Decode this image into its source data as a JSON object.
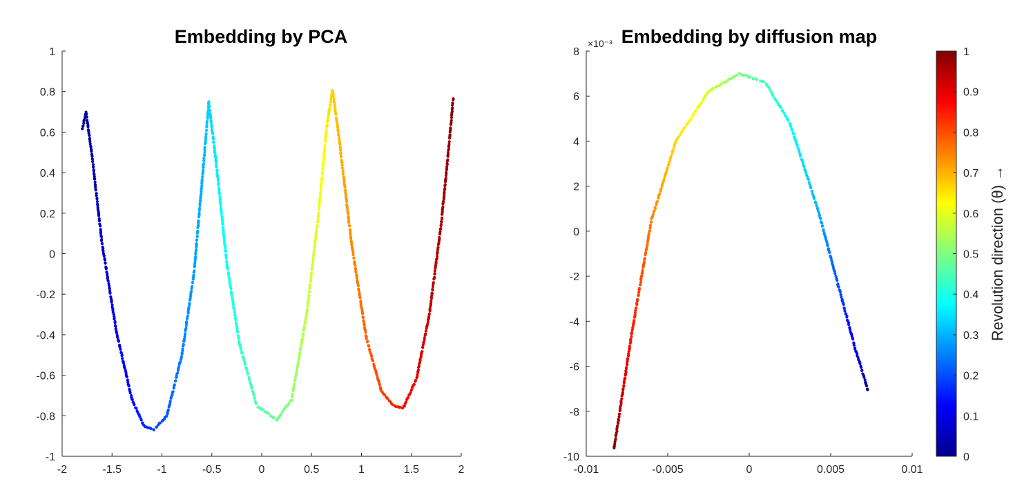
{
  "chart_data": [
    {
      "type": "scatter",
      "title": "Embedding by PCA",
      "xlabel": "",
      "ylabel": "",
      "xlim": [
        -2,
        2
      ],
      "ylim": [
        -1,
        1
      ],
      "xticks": [
        -2,
        -1.5,
        -1,
        -0.5,
        0,
        0.5,
        1,
        1.5,
        2
      ],
      "yticks": [
        -1,
        -0.8,
        -0.6,
        -0.4,
        -0.2,
        0,
        0.2,
        0.4,
        0.6,
        0.8,
        1
      ],
      "xtick_labels": [
        "-2",
        "-1.5",
        "-1",
        "-0.5",
        "0",
        "0.5",
        "1",
        "1.5",
        "2"
      ],
      "ytick_labels": [
        "-1",
        "-0.8",
        "-0.6",
        "-0.4",
        "-0.2",
        "0",
        "0.2",
        "0.4",
        "0.6",
        "0.8",
        "1"
      ],
      "grid": false,
      "curve_anchors": [
        {
          "x": -1.8,
          "y": 0.61,
          "c": 0.0
        },
        {
          "x": -1.76,
          "y": 0.7,
          "c": 0.01
        },
        {
          "x": -1.7,
          "y": 0.48,
          "c": 0.03
        },
        {
          "x": -1.6,
          "y": 0.05,
          "c": 0.06
        },
        {
          "x": -1.45,
          "y": -0.4,
          "c": 0.1
        },
        {
          "x": -1.3,
          "y": -0.72,
          "c": 0.13
        },
        {
          "x": -1.18,
          "y": -0.85,
          "c": 0.16
        },
        {
          "x": -1.08,
          "y": -0.87,
          "c": 0.18
        },
        {
          "x": -0.95,
          "y": -0.8,
          "c": 0.21
        },
        {
          "x": -0.8,
          "y": -0.5,
          "c": 0.25
        },
        {
          "x": -0.68,
          "y": -0.1,
          "c": 0.28
        },
        {
          "x": -0.59,
          "y": 0.4,
          "c": 0.3
        },
        {
          "x": -0.53,
          "y": 0.75,
          "c": 0.33
        },
        {
          "x": -0.45,
          "y": 0.42,
          "c": 0.36
        },
        {
          "x": -0.35,
          "y": -0.05,
          "c": 0.39
        },
        {
          "x": -0.22,
          "y": -0.45,
          "c": 0.42
        },
        {
          "x": -0.05,
          "y": -0.75,
          "c": 0.45
        },
        {
          "x": 0.15,
          "y": -0.82,
          "c": 0.48
        },
        {
          "x": 0.3,
          "y": -0.72,
          "c": 0.52
        },
        {
          "x": 0.45,
          "y": -0.3,
          "c": 0.56
        },
        {
          "x": 0.57,
          "y": 0.2,
          "c": 0.6
        },
        {
          "x": 0.65,
          "y": 0.62,
          "c": 0.64
        },
        {
          "x": 0.71,
          "y": 0.81,
          "c": 0.67
        },
        {
          "x": 0.78,
          "y": 0.55,
          "c": 0.7
        },
        {
          "x": 0.9,
          "y": 0.05,
          "c": 0.74
        },
        {
          "x": 1.05,
          "y": -0.42,
          "c": 0.78
        },
        {
          "x": 1.2,
          "y": -0.68,
          "c": 0.81
        },
        {
          "x": 1.32,
          "y": -0.75,
          "c": 0.84
        },
        {
          "x": 1.42,
          "y": -0.76,
          "c": 0.87
        },
        {
          "x": 1.55,
          "y": -0.62,
          "c": 0.9
        },
        {
          "x": 1.68,
          "y": -0.3,
          "c": 0.93
        },
        {
          "x": 1.8,
          "y": 0.15,
          "c": 0.96
        },
        {
          "x": 1.88,
          "y": 0.55,
          "c": 0.98
        },
        {
          "x": 1.92,
          "y": 0.77,
          "c": 1.0
        }
      ]
    },
    {
      "type": "scatter",
      "title": "Embedding by diffusion map",
      "xlabel": "",
      "ylabel": "",
      "xlim": [
        -0.01,
        0.01
      ],
      "ylim": [
        -10,
        8
      ],
      "y_exponent_label": "×10⁻³",
      "xticks": [
        -0.01,
        -0.005,
        0,
        0.005,
        0.01
      ],
      "yticks": [
        -10,
        -8,
        -6,
        -4,
        -2,
        0,
        2,
        4,
        6,
        8
      ],
      "xtick_labels": [
        "-0.01",
        "-0.005",
        "0",
        "0.005",
        "0.01"
      ],
      "ytick_labels": [
        "-10",
        "-8",
        "-6",
        "-4",
        "-2",
        "0",
        "2",
        "4",
        "6",
        "8"
      ],
      "grid": false,
      "curve_anchors": [
        {
          "x": 0.0073,
          "y": -7.1,
          "c": 0.0
        },
        {
          "x": 0.0065,
          "y": -5.2,
          "c": 0.1
        },
        {
          "x": 0.0055,
          "y": -2.5,
          "c": 0.2
        },
        {
          "x": 0.0042,
          "y": 1.0,
          "c": 0.3
        },
        {
          "x": 0.0025,
          "y": 4.8,
          "c": 0.38
        },
        {
          "x": 0.001,
          "y": 6.6,
          "c": 0.44
        },
        {
          "x": -0.0006,
          "y": 7.0,
          "c": 0.5
        },
        {
          "x": -0.0025,
          "y": 6.2,
          "c": 0.58
        },
        {
          "x": -0.0045,
          "y": 4.0,
          "c": 0.66
        },
        {
          "x": -0.006,
          "y": 0.5,
          "c": 0.75
        },
        {
          "x": -0.0072,
          "y": -4.5,
          "c": 0.85
        },
        {
          "x": -0.0083,
          "y": -9.7,
          "c": 1.0
        }
      ]
    }
  ],
  "colorbar": {
    "label": "Revolution direction (θ) →",
    "range": [
      0,
      1
    ],
    "ticks": [
      0,
      0.1,
      0.2,
      0.3,
      0.4,
      0.5,
      0.6,
      0.7,
      0.8,
      0.9,
      1
    ],
    "tick_labels": [
      "0",
      "0.1",
      "0.2",
      "0.3",
      "0.4",
      "0.5",
      "0.6",
      "0.7",
      "0.8",
      "0.9",
      "1"
    ],
    "colormap": "jet",
    "colormap_stops": [
      "#00008f",
      "#0000ff",
      "#00ffff",
      "#ffff00",
      "#ff0000",
      "#800000"
    ]
  }
}
